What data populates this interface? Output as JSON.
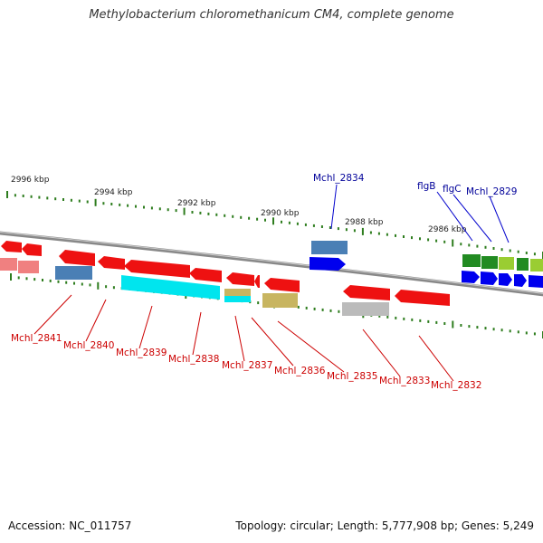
{
  "title": "Methylobacterium chloromethanicum CM4, complete genome",
  "footer": {
    "accession": "Accession: NC_011757",
    "topology": "Topology: circular; Length: 5,777,908 bp; Genes: 5,249"
  },
  "colors": {
    "red": "#ee1111",
    "pink": "#f08080",
    "steelblue": "#4a7fb5",
    "cyan": "#00e5ee",
    "khaki": "#c8b560",
    "gray": "#bbbbbb",
    "blue": "#0000ee",
    "green": "#228b22",
    "lightgreen": "#9acd32",
    "tick": "#2e7d1e",
    "backbone": "#888888",
    "label_red": "#cc0000",
    "label_blue": "#000099"
  },
  "kbp_labels": [
    "2996 kbp",
    "2994 kbp",
    "2992 kbp",
    "2990 kbp",
    "2988 kbp",
    "2986 kbp"
  ],
  "gene_labels": {
    "bottom": [
      "Mchl_2841",
      "Mchl_2840",
      "Mchl_2839",
      "Mchl_2838",
      "Mchl_2837",
      "Mchl_2836",
      "Mchl_2835",
      "Mchl_2833",
      "Mchl_2832"
    ],
    "top": [
      "Mchl_2834",
      "flgB",
      "flgC",
      "Mchl_2829"
    ]
  }
}
